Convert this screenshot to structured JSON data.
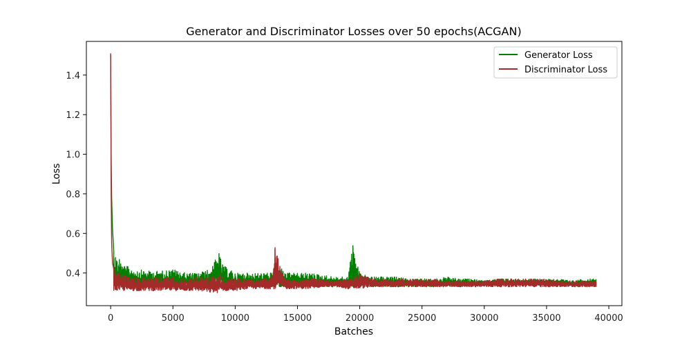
{
  "chart_data": {
    "type": "line",
    "title": "Generator and Discriminator Losses over 50 epochs(ACGAN)",
    "xlabel": "Batches",
    "ylabel": "Loss",
    "xlim": [
      -1950,
      41050
    ],
    "ylim": [
      0.235,
      1.57
    ],
    "xticks": [
      0,
      5000,
      10000,
      15000,
      20000,
      25000,
      30000,
      35000,
      40000
    ],
    "xtick_labels": [
      "0",
      "5000",
      "10000",
      "15000",
      "20000",
      "25000",
      "30000",
      "35000",
      "40000"
    ],
    "yticks": [
      0.4,
      0.6,
      0.8,
      1.0,
      1.2,
      1.4
    ],
    "ytick_labels": [
      "0.4",
      "0.6",
      "0.8",
      "1.0",
      "1.2",
      "1.4"
    ],
    "grid": false,
    "legend_position": "upper right",
    "series": [
      {
        "name": "Generator Loss",
        "color": "#008000",
        "x": [
          0,
          40,
          80,
          150,
          250,
          400,
          700,
          1000,
          2000,
          3000,
          4000,
          5000,
          6000,
          7000,
          8000,
          8700,
          9000,
          10000,
          11000,
          12000,
          13000,
          13200,
          14000,
          15000,
          16000,
          17000,
          18000,
          19000,
          19450,
          20000,
          21000,
          22000,
          23000,
          24000,
          25000,
          26000,
          27000,
          28000,
          29000,
          30000,
          31000,
          32000,
          33000,
          34000,
          35000,
          36000,
          37000,
          38000,
          39000
        ],
        "values": [
          1.5,
          0.98,
          0.78,
          0.62,
          0.51,
          0.48,
          0.47,
          0.44,
          0.42,
          0.41,
          0.41,
          0.42,
          0.4,
          0.4,
          0.42,
          0.5,
          0.44,
          0.4,
          0.4,
          0.4,
          0.4,
          0.47,
          0.4,
          0.4,
          0.4,
          0.39,
          0.38,
          0.38,
          0.54,
          0.4,
          0.38,
          0.38,
          0.38,
          0.37,
          0.37,
          0.37,
          0.38,
          0.37,
          0.37,
          0.36,
          0.37,
          0.37,
          0.37,
          0.37,
          0.37,
          0.37,
          0.36,
          0.37,
          0.37
        ],
        "noise_low": [
          0.33,
          0.33,
          0.33,
          0.33,
          0.33,
          0.33,
          0.33,
          0.33,
          0.33,
          0.33,
          0.33,
          0.33,
          0.33,
          0.33,
          0.33,
          0.33,
          0.33,
          0.33,
          0.33,
          0.33,
          0.33,
          0.33,
          0.33,
          0.33,
          0.33,
          0.33,
          0.33,
          0.33,
          0.33,
          0.33,
          0.33,
          0.33,
          0.33,
          0.33,
          0.33,
          0.33,
          0.33,
          0.33,
          0.34,
          0.34,
          0.34,
          0.34,
          0.34,
          0.34,
          0.34,
          0.34,
          0.34,
          0.34,
          0.34
        ]
      },
      {
        "name": "Discriminator Loss",
        "color": "#a52a2a",
        "x": [
          0,
          40,
          80,
          150,
          250,
          400,
          700,
          1000,
          2000,
          3000,
          4000,
          5000,
          6000,
          7000,
          8000,
          8700,
          9000,
          10000,
          11000,
          12000,
          13000,
          13200,
          14000,
          15000,
          16000,
          17000,
          18000,
          19000,
          19450,
          20000,
          21000,
          22000,
          23000,
          24000,
          25000,
          26000,
          27000,
          28000,
          29000,
          30000,
          31000,
          32000,
          33000,
          34000,
          35000,
          36000,
          37000,
          38000,
          39000
        ],
        "values": [
          1.51,
          0.8,
          0.55,
          0.45,
          0.42,
          0.41,
          0.4,
          0.39,
          0.38,
          0.38,
          0.38,
          0.38,
          0.37,
          0.38,
          0.38,
          0.4,
          0.38,
          0.37,
          0.37,
          0.37,
          0.38,
          0.53,
          0.37,
          0.37,
          0.37,
          0.37,
          0.36,
          0.37,
          0.38,
          0.4,
          0.37,
          0.37,
          0.37,
          0.37,
          0.37,
          0.37,
          0.36,
          0.36,
          0.36,
          0.36,
          0.37,
          0.37,
          0.37,
          0.37,
          0.37,
          0.36,
          0.36,
          0.36,
          0.36
        ],
        "noise_low": [
          0.27,
          0.28,
          0.29,
          0.3,
          0.31,
          0.31,
          0.31,
          0.31,
          0.31,
          0.31,
          0.31,
          0.31,
          0.31,
          0.31,
          0.3,
          0.3,
          0.31,
          0.31,
          0.32,
          0.32,
          0.32,
          0.32,
          0.32,
          0.32,
          0.32,
          0.33,
          0.33,
          0.32,
          0.32,
          0.32,
          0.33,
          0.33,
          0.33,
          0.33,
          0.33,
          0.33,
          0.33,
          0.33,
          0.33,
          0.33,
          0.33,
          0.33,
          0.33,
          0.33,
          0.33,
          0.33,
          0.33,
          0.33,
          0.33
        ]
      }
    ]
  }
}
